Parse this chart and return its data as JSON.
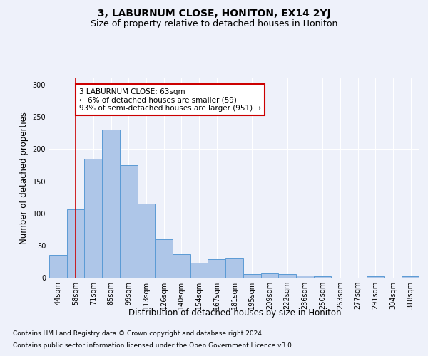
{
  "title": "3, LABURNUM CLOSE, HONITON, EX14 2YJ",
  "subtitle": "Size of property relative to detached houses in Honiton",
  "xlabel": "Distribution of detached houses by size in Honiton",
  "ylabel": "Number of detached properties",
  "categories": [
    "44sqm",
    "58sqm",
    "71sqm",
    "85sqm",
    "99sqm",
    "113sqm",
    "126sqm",
    "140sqm",
    "154sqm",
    "167sqm",
    "181sqm",
    "195sqm",
    "209sqm",
    "222sqm",
    "236sqm",
    "250sqm",
    "263sqm",
    "277sqm",
    "291sqm",
    "304sqm",
    "318sqm"
  ],
  "values": [
    35,
    106,
    185,
    230,
    175,
    115,
    60,
    36,
    23,
    29,
    30,
    5,
    7,
    6,
    3,
    2,
    0,
    0,
    2,
    0,
    2
  ],
  "bar_color": "#aec6e8",
  "bar_edge_color": "#5b9bd5",
  "vline_x": 1,
  "vline_color": "#cc0000",
  "annotation_text": "3 LABURNUM CLOSE: 63sqm\n← 6% of detached houses are smaller (59)\n93% of semi-detached houses are larger (951) →",
  "annotation_box_color": "#ffffff",
  "annotation_box_edge_color": "#cc0000",
  "ylim": [
    0,
    310
  ],
  "yticks": [
    0,
    50,
    100,
    150,
    200,
    250,
    300
  ],
  "footer_line1": "Contains HM Land Registry data © Crown copyright and database right 2024.",
  "footer_line2": "Contains public sector information licensed under the Open Government Licence v3.0.",
  "background_color": "#eef1fa",
  "plot_bg_color": "#eef1fa",
  "grid_color": "#ffffff",
  "title_fontsize": 10,
  "subtitle_fontsize": 9,
  "axis_label_fontsize": 8.5,
  "tick_fontsize": 7,
  "footer_fontsize": 6.5,
  "annotation_fontsize": 7.5
}
